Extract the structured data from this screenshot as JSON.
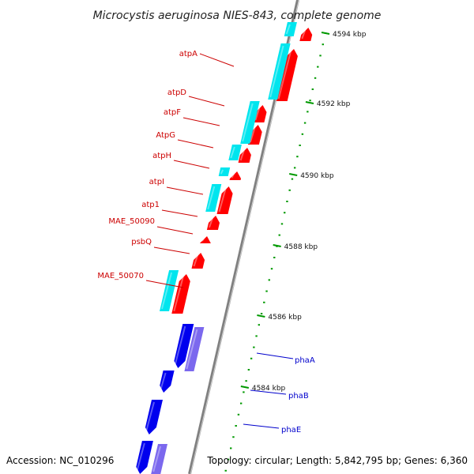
{
  "title": "Microcystis aeruginosa NIES-843, complete genome",
  "footer": {
    "accession": "Accession: NC_010296",
    "summary": "Topology: circular; Length: 5,842,795 bp; Genes: 6,360"
  },
  "colors": {
    "forward_cds": "#ff0000",
    "forward_annotation": "#00e5ee",
    "reverse_cds": "#0000ee",
    "reverse_annotation": "#7b68ee",
    "backbone": "#808080",
    "tick": "#009900",
    "red_label": "#cc0000",
    "blue_label": "#0000cc"
  },
  "scale_ticks": [
    {
      "label": "4594 kbp"
    },
    {
      "label": "4592 kbp"
    },
    {
      "label": "4590 kbp"
    },
    {
      "label": "4588 kbp"
    },
    {
      "label": "4586 kbp"
    },
    {
      "label": "4584 kbp"
    }
  ],
  "gene_labels_forward": [
    {
      "text": "atpA"
    },
    {
      "text": "atpD"
    },
    {
      "text": "atpF"
    },
    {
      "text": "AtpG"
    },
    {
      "text": "atpH"
    },
    {
      "text": "atpI"
    },
    {
      "text": "atp1"
    },
    {
      "text": "MAE_50090"
    },
    {
      "text": "psbQ"
    },
    {
      "text": "MAE_50070"
    }
  ],
  "gene_labels_reverse": [
    {
      "text": "phaA"
    },
    {
      "text": "phaB"
    },
    {
      "text": "phaE"
    }
  ]
}
